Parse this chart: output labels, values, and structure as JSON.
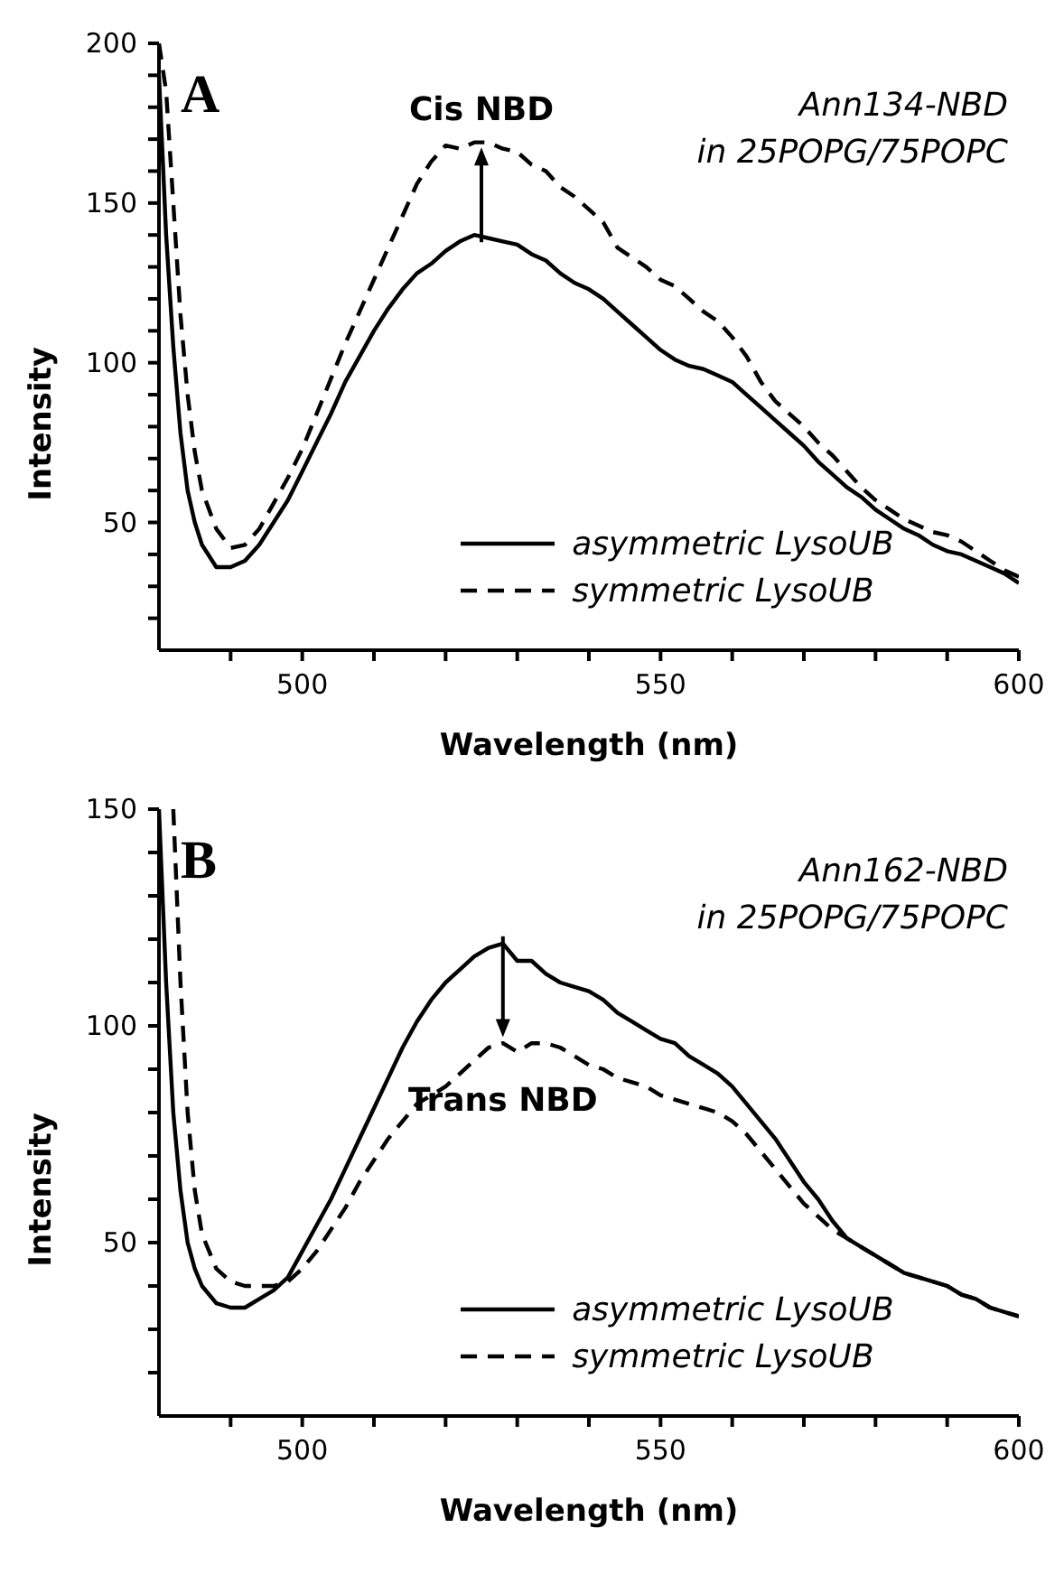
{
  "chart_data": [
    {
      "type": "line",
      "title": "A",
      "xlabel": "Wavelength (nm)",
      "ylabel": "Intensity",
      "x": [
        480,
        481,
        482,
        483,
        484,
        485,
        486,
        488,
        490,
        492,
        494,
        496,
        498,
        500,
        502,
        504,
        506,
        508,
        510,
        512,
        514,
        516,
        518,
        520,
        522,
        524,
        526,
        528,
        530,
        532,
        534,
        536,
        538,
        540,
        542,
        544,
        546,
        548,
        550,
        552,
        554,
        556,
        558,
        560,
        562,
        564,
        566,
        568,
        570,
        572,
        574,
        576,
        578,
        580,
        582,
        584,
        586,
        588,
        590,
        592,
        594,
        596,
        598,
        600
      ],
      "series": [
        {
          "name": "asymmetric LysoUB",
          "color": "#000000",
          "line_style": "solid",
          "values": [
            190,
            140,
            105,
            78,
            60,
            50,
            43,
            36,
            36,
            38,
            43,
            50,
            57,
            66,
            75,
            84,
            94,
            102,
            110,
            117,
            123,
            128,
            131,
            135,
            138,
            140,
            139,
            138,
            137,
            134,
            132,
            128,
            125,
            123,
            120,
            116,
            112,
            108,
            104,
            101,
            99,
            98,
            96,
            94,
            90,
            86,
            82,
            78,
            74,
            69,
            65,
            61,
            58,
            54,
            51,
            48,
            46,
            43,
            41,
            40,
            38,
            36,
            34,
            31
          ]
        },
        {
          "name": "symmetric LysoUB",
          "color": "#000000",
          "line_style": "dashed",
          "values": [
            200,
            185,
            150,
            115,
            90,
            72,
            60,
            48,
            42,
            43,
            48,
            56,
            64,
            73,
            84,
            95,
            106,
            116,
            126,
            136,
            146,
            156,
            163,
            168,
            167,
            169,
            169,
            167,
            166,
            162,
            160,
            155,
            152,
            148,
            144,
            136,
            133,
            130,
            126,
            124,
            120,
            116,
            113,
            108,
            102,
            94,
            88,
            84,
            80,
            75,
            71,
            66,
            61,
            57,
            54,
            51,
            49,
            47,
            46,
            44,
            41,
            38,
            35,
            33
          ]
        }
      ],
      "xlim": [
        480,
        600
      ],
      "xticks": [
        {
          "value": 490,
          "label": null
        },
        500,
        {
          "value": 510,
          "label": null
        },
        {
          "value": 520,
          "label": null
        },
        {
          "value": 530,
          "label": null
        },
        {
          "value": 540,
          "label": null
        },
        550,
        {
          "value": 560,
          "label": null
        },
        {
          "value": 570,
          "label": null
        },
        {
          "value": 580,
          "label": null
        },
        {
          "value": 590,
          "label": null
        },
        600
      ],
      "ylim": [
        10,
        200
      ],
      "yticks": [
        {
          "value": 20,
          "label": null
        },
        {
          "value": 30,
          "label": null
        },
        {
          "value": 40,
          "label": null
        },
        50,
        {
          "value": 60,
          "label": null
        },
        {
          "value": 70,
          "label": null
        },
        {
          "value": 80,
          "label": null
        },
        {
          "value": 90,
          "label": null
        },
        100,
        {
          "value": 110,
          "label": null
        },
        {
          "value": 120,
          "label": null
        },
        {
          "value": 130,
          "label": null
        },
        {
          "value": 140,
          "label": null
        },
        150,
        {
          "value": 160,
          "label": null
        },
        {
          "value": 170,
          "label": null
        },
        {
          "value": 180,
          "label": null
        },
        {
          "value": 190,
          "label": null
        },
        200
      ],
      "annotations": [
        {
          "text": "Cis NBD",
          "x": 525,
          "y": 168
        },
        "Ann134-NBD",
        "in 25POPG/75POPC"
      ],
      "legend": "bottom"
    },
    {
      "type": "line",
      "title": "B",
      "xlabel": "Wavelength (nm)",
      "ylabel": "Intensity",
      "x": [
        480,
        481,
        482,
        483,
        484,
        485,
        486,
        488,
        490,
        492,
        494,
        496,
        498,
        500,
        502,
        504,
        506,
        508,
        510,
        512,
        514,
        516,
        518,
        520,
        522,
        524,
        526,
        528,
        530,
        532,
        534,
        536,
        538,
        540,
        542,
        544,
        546,
        548,
        550,
        552,
        554,
        556,
        558,
        560,
        562,
        564,
        566,
        568,
        570,
        572,
        574,
        576,
        578,
        580,
        582,
        584,
        586,
        588,
        590,
        592,
        594,
        596,
        598,
        600
      ],
      "series": [
        {
          "name": "asymmetric LysoUB",
          "color": "#000000",
          "line_style": "solid",
          "values": [
            150,
            110,
            80,
            62,
            50,
            44,
            40,
            36,
            35,
            35,
            37,
            39,
            42,
            48,
            54,
            60,
            67,
            74,
            81,
            88,
            95,
            101,
            106,
            110,
            113,
            116,
            118,
            119,
            115,
            115,
            112,
            110,
            109,
            108,
            106,
            103,
            101,
            99,
            97,
            96,
            93,
            91,
            89,
            86,
            82,
            78,
            74,
            69,
            64,
            60,
            55,
            51,
            49,
            47,
            45,
            43,
            42,
            41,
            40,
            38,
            37,
            35,
            34,
            33
          ]
        },
        {
          "name": "symmetric LysoUB",
          "color": "#000000",
          "line_style": "dashed",
          "values": [
            null,
            null,
            150,
            110,
            80,
            62,
            52,
            44,
            41,
            40,
            40,
            40,
            41,
            44,
            48,
            53,
            58,
            64,
            69,
            74,
            78,
            82,
            84,
            86,
            89,
            92,
            95,
            96,
            94,
            96,
            96,
            95,
            93,
            91,
            90,
            88,
            87,
            86,
            84,
            83,
            82,
            81,
            80,
            78,
            75,
            71,
            67,
            63,
            59,
            56,
            53,
            51,
            49,
            47,
            45,
            43,
            42,
            41,
            40,
            38,
            37,
            35,
            34,
            33
          ]
        }
      ],
      "xlim": [
        480,
        600
      ],
      "xticks": [
        {
          "value": 490,
          "label": null
        },
        500,
        {
          "value": 510,
          "label": null
        },
        {
          "value": 520,
          "label": null
        },
        {
          "value": 530,
          "label": null
        },
        {
          "value": 540,
          "label": null
        },
        550,
        {
          "value": 560,
          "label": null
        },
        {
          "value": 570,
          "label": null
        },
        {
          "value": 580,
          "label": null
        },
        {
          "value": 590,
          "label": null
        },
        600
      ],
      "ylim": [
        10,
        150
      ],
      "yticks": [
        {
          "value": 20,
          "label": null
        },
        {
          "value": 30,
          "label": null
        },
        {
          "value": 40,
          "label": null
        },
        50,
        {
          "value": 60,
          "label": null
        },
        {
          "value": 70,
          "label": null
        },
        {
          "value": 80,
          "label": null
        },
        {
          "value": 90,
          "label": null
        },
        100,
        {
          "value": 110,
          "label": null
        },
        {
          "value": 120,
          "label": null
        },
        {
          "value": 130,
          "label": null
        },
        {
          "value": 140,
          "label": null
        },
        150
      ],
      "annotations": [
        {
          "text": "Trans NBD",
          "x": 528,
          "y": 97
        },
        "Ann162-NBD",
        "in 25POPG/75POPC"
      ],
      "legend": "bottom"
    }
  ]
}
